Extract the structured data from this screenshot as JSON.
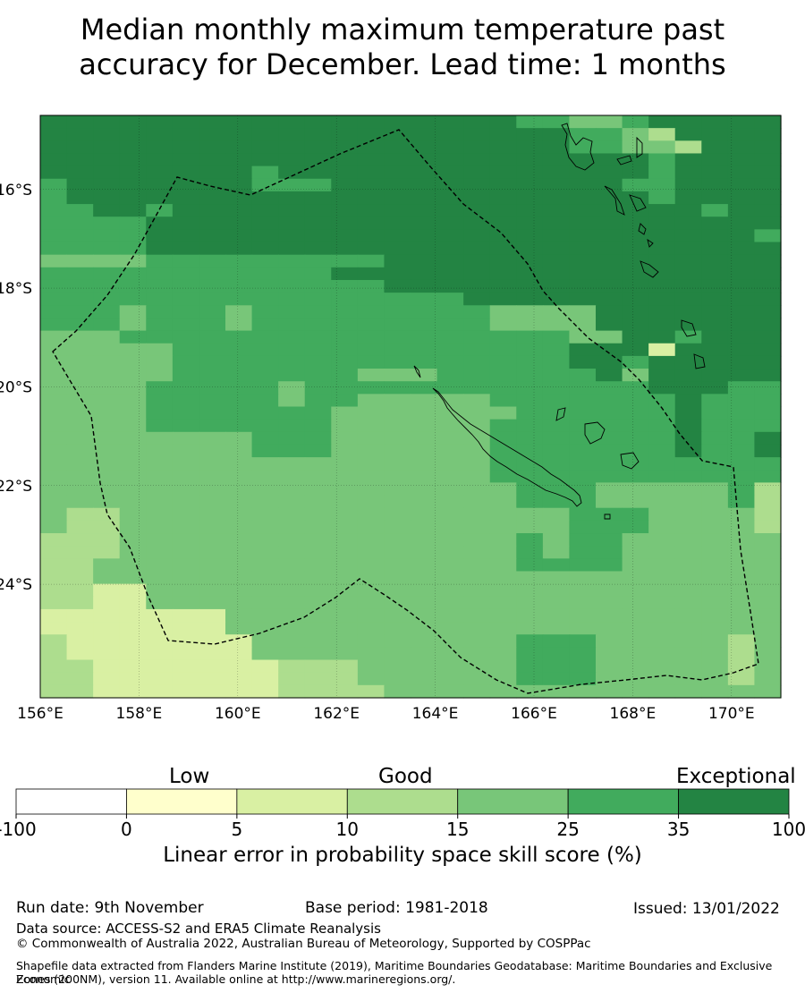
{
  "title_line1": "Median monthly maximum temperature past",
  "title_line2": "accuracy for December. Lead time: 1 months",
  "map": {
    "lon_range": [
      156,
      171
    ],
    "lat_range": [
      -26.3,
      -14.5
    ],
    "lon_ticks": [
      "156°E",
      "158°E",
      "160°E",
      "162°E",
      "164°E",
      "166°E",
      "168°E",
      "170°E"
    ],
    "lat_ticks": [
      "16°S",
      "18°S",
      "20°S",
      "22°S",
      "24°S"
    ],
    "colors": [
      "#ffffff",
      "#ffffcc",
      "#d9f0a3",
      "#addd8e",
      "#78c679",
      "#41ab5d",
      "#238443"
    ],
    "grid_classes": [
      "6666666666666666665544566666",
      "6666666666666666666655436666",
      "6666666666666666666655443666",
      "6666666666666666666666656666",
      "6666666656666666666666656666",
      "5666666655566666666666556666",
      "5666666666666666666666656666",
      "5566566666666666666666666566",
      "5555666666666666666666666666",
      "5555666666666666666666666665",
      "5555666666666666666666666666",
      "4444555555555666666666666666",
      "5555555555566666666666666666",
      "5555555555555666666666666666",
      "5555555555555555666666666666",
      "5554555455555555544446666666",
      "5554555455555555544446666666",
      "4445555555555555555544665666",
      "4444455555555555555566626666",
      "4444455555555555555566566666",
      "4444455555554445555556466666",
      "4444555554555555555555566655",
      "4444555554554444455555556555",
      "4444555555544444445555556555",
      "4444555555544444455555556555",
      "4444444455544444455555556556",
      "4444444455544444455555556556",
      "4444444444444444455555555555",
      "4444444444444444455555555555",
      "4444444444444444445554444453",
      "4444444444444444445554444453",
      "4334444444444444444455544443",
      "4334444444444444444455544443",
      "3334444444444444445455444444",
      "3334444444444444445455444444",
      "3344444444444444445555444444",
      "3344444444444444444444444444",
      "3322444444444444444444444444",
      "3322444444444444444444444444",
      "2222222444444444444444444444",
      "2222222444444444444444444444",
      "3222222244444444445554444434",
      "3222222244444444445554444434",
      "3322222223334444445554444434",
      "3322222223334444445554444434",
      "3322222223333444444444444444"
    ]
  },
  "colorbar": {
    "categories": [
      "Low",
      "Good",
      "Exceptional"
    ],
    "tick_labels": [
      "-100",
      "0",
      "5",
      "10",
      "15",
      "25",
      "35",
      "100"
    ],
    "label": "Linear error in probability space skill score (%)"
  },
  "footer": {
    "run_date": "Run date: 9th November",
    "base_period": "Base period: 1981-2018",
    "issued": "Issued: 13/01/2022",
    "data_source": "Data source: ACCESS-S2 and ERA5 Climate Reanalysis",
    "copyright": "© Commonwealth of Australia 2022, Australian Bureau of Meteorology, Supported by COSPPac",
    "shapefile_line1": "Shapefile data extracted from Flanders Marine Institute (2019), Maritime Boundaries Geodatabase: Maritime Boundaries and Exclusive Economic",
    "shapefile_line2": "Zones (200NM), version 11. Available online at http://www.marineregions.org/."
  }
}
